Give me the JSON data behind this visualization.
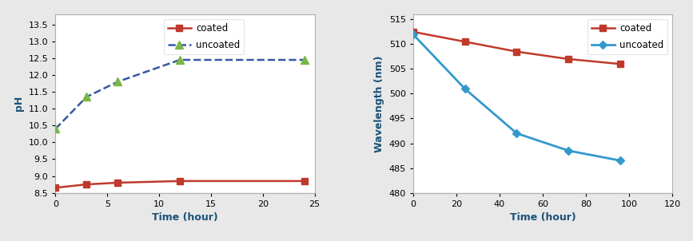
{
  "left": {
    "coated_x": [
      0,
      3,
      6,
      12,
      24
    ],
    "coated_y": [
      8.65,
      8.75,
      8.8,
      8.85,
      8.85
    ],
    "uncoated_x": [
      0,
      3,
      6,
      12,
      24
    ],
    "uncoated_y": [
      10.4,
      11.35,
      11.8,
      12.45,
      12.45
    ],
    "coated_color": "#c0392b",
    "uncoated_line_color": "#3457a6",
    "uncoated_marker_color": "#7ab648",
    "xlabel": "Time (hour)",
    "ylabel": "pH",
    "xlim": [
      0,
      25
    ],
    "ylim": [
      8.5,
      13.8
    ],
    "yticks": [
      8.5,
      9.0,
      9.5,
      10.0,
      10.5,
      11.0,
      11.5,
      12.0,
      12.5,
      13.0,
      13.5
    ],
    "xticks": [
      0,
      5,
      10,
      15,
      20,
      25
    ]
  },
  "right": {
    "coated_x": [
      0,
      24,
      48,
      72,
      96
    ],
    "coated_y": [
      512.5,
      510.5,
      508.5,
      507.0,
      506.0
    ],
    "uncoated_x": [
      0,
      24,
      48,
      72,
      96
    ],
    "uncoated_y": [
      512.0,
      501.0,
      492.0,
      488.5,
      486.5
    ],
    "coated_color": "#c0392b",
    "uncoated_color": "#3399cc",
    "xlabel": "Time (hour)",
    "ylabel": "Wavelength (nm)",
    "xlim": [
      0,
      120
    ],
    "ylim": [
      480,
      516
    ],
    "yticks": [
      480,
      485,
      490,
      495,
      500,
      505,
      510,
      515
    ],
    "xticks": [
      0,
      20,
      40,
      60,
      80,
      100,
      120
    ]
  },
  "bg_color": "#e8e8e8",
  "box_color": "#d0d0d0",
  "baseline_color": "#a0c8e8"
}
